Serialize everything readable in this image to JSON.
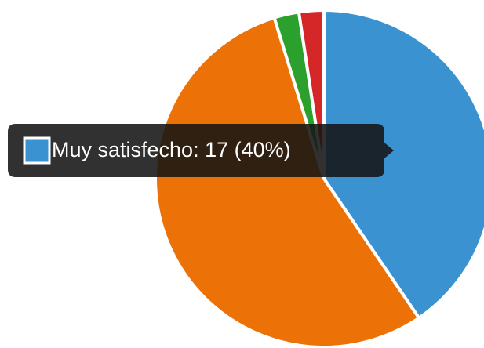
{
  "chart_data": {
    "type": "pie",
    "categories": [
      "Muy satisfecho",
      null,
      null,
      null
    ],
    "values": [
      17,
      23,
      1,
      1
    ],
    "colors": [
      "#3b92d1",
      "#ec7207",
      "#2ca02c",
      "#d62728"
    ],
    "tooltip": "Muy satisfecho: 17 (40%)"
  }
}
